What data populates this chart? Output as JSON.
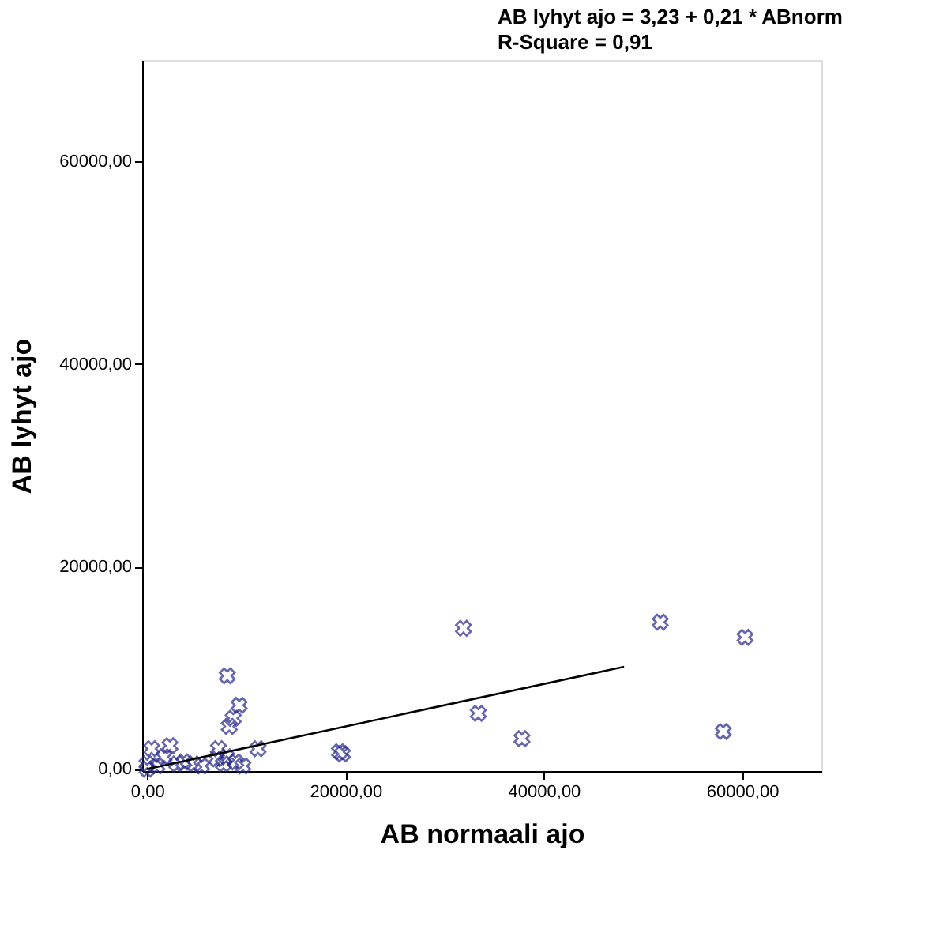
{
  "chart_data": {
    "type": "scatter",
    "title": "AB lyhyt ajo = 3,23 + 0,21 * ABnorm",
    "subtitle": "R-Square = 0,91",
    "xlabel": "AB normaali ajo",
    "ylabel": "AB lyhyt ajo",
    "xlim": [
      -500,
      68000
    ],
    "ylim": [
      -200,
      70000
    ],
    "xticks": [
      {
        "value": 0,
        "label": "0,00"
      },
      {
        "value": 20000,
        "label": "20000,00"
      },
      {
        "value": 40000,
        "label": "40000,00"
      },
      {
        "value": 60000,
        "label": "60000,00"
      }
    ],
    "yticks": [
      {
        "value": 0,
        "label": "0,00"
      },
      {
        "value": 20000,
        "label": "20000,00"
      },
      {
        "value": 40000,
        "label": "40000,00"
      },
      {
        "value": 60000,
        "label": "60000,00"
      }
    ],
    "grid": false,
    "series": [
      {
        "color": "#27278a",
        "marker": "cross",
        "x": [
          31900,
          51750,
          60300,
          33400,
          37800,
          58100,
          8080,
          9280,
          8280,
          8680,
          11180,
          19400,
          19700,
          2300,
          450,
          7190,
          8000,
          8930,
          9650,
          3700,
          4700,
          5500,
          1700,
          0,
          1000,
          0,
          3000,
          7000,
          7700
        ],
        "values": [
          13900,
          14500,
          13000,
          5500,
          3000,
          3700,
          9200,
          6300,
          4200,
          5000,
          2000,
          1700,
          1500,
          2300,
          2000,
          2000,
          1200,
          700,
          300,
          700,
          500,
          300,
          1200,
          500,
          300,
          0,
          500,
          1000,
          500
        ]
      },
      {
        "type": "line",
        "color": "#000000",
        "marker": "none",
        "line_style": "solid",
        "x": [
          0,
          48100
        ],
        "values": [
          0,
          10100
        ]
      }
    ]
  }
}
